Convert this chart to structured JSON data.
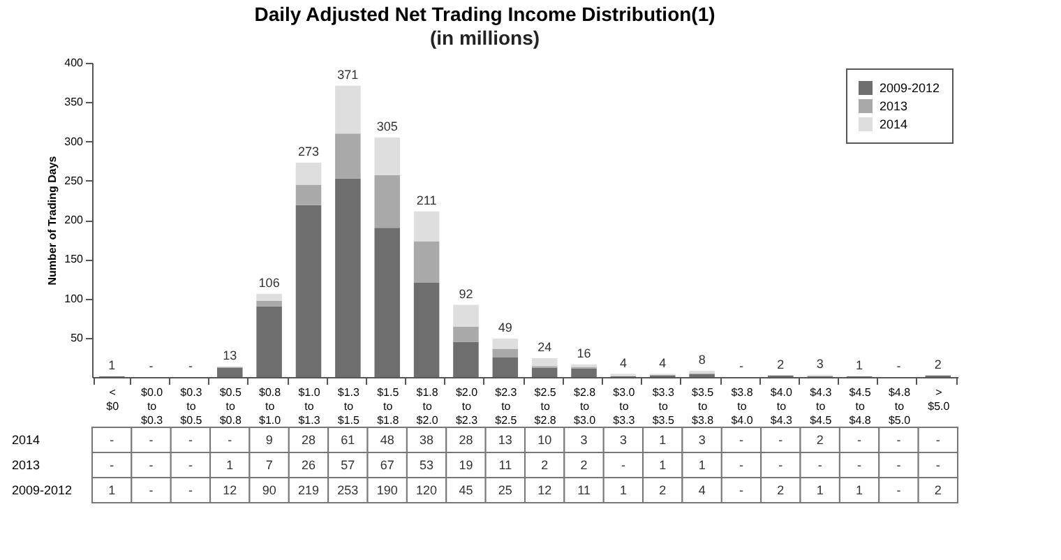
{
  "chart_data": {
    "type": "bar",
    "title": "Daily Adjusted Net Trading Income Distribution(1)",
    "subtitle": "(in millions)",
    "ylabel": "Number of Trading Days",
    "categories": [
      "< $0",
      "$0.0 to $0.3",
      "$0.3 to $0.5",
      "$0.5 to $0.8",
      "$0.8 to $1.0",
      "$1.0 to $1.3",
      "$1.3 to $1.5",
      "$1.5 to $1.8",
      "$1.8 to $2.0",
      "$2.0 to $2.3",
      "$2.3 to $2.5",
      "$2.5 to $2.8",
      "$2.8 to $3.0",
      "$3.0 to $3.3",
      "$3.3 to $3.5",
      "$3.5 to $3.8",
      "$3.8 to $4.0",
      "$4.0 to $4.3",
      "$4.3 to $4.5",
      "$4.5 to $4.8",
      "$4.8 to $5.0",
      "> $5.0"
    ],
    "series": [
      {
        "name": "2009-2012",
        "color": "#6e6e6e",
        "values": [
          1,
          null,
          null,
          12,
          90,
          219,
          253,
          190,
          120,
          45,
          25,
          12,
          11,
          1,
          2,
          4,
          null,
          2,
          1,
          1,
          null,
          2
        ],
        "value_labels": [
          "1",
          "-",
          "-",
          "12",
          "90",
          "219",
          "253",
          "190",
          "120",
          "45",
          "25",
          "12",
          "11",
          "1",
          "2",
          "4",
          "-",
          "2",
          "1",
          "1",
          "-",
          "2"
        ]
      },
      {
        "name": "2013",
        "color": "#a9a9a9",
        "values": [
          null,
          null,
          null,
          1,
          7,
          26,
          57,
          67,
          53,
          19,
          11,
          2,
          2,
          null,
          1,
          1,
          null,
          null,
          null,
          null,
          null,
          null
        ],
        "value_labels": [
          "-",
          "-",
          "-",
          "1",
          "7",
          "26",
          "57",
          "67",
          "53",
          "19",
          "11",
          "2",
          "2",
          "-",
          "1",
          "1",
          "-",
          "-",
          "-",
          "-",
          "-",
          "-"
        ]
      },
      {
        "name": "2014",
        "color": "#dedede",
        "values": [
          null,
          null,
          null,
          null,
          9,
          28,
          61,
          48,
          38,
          28,
          13,
          10,
          3,
          3,
          1,
          3,
          null,
          null,
          2,
          null,
          null,
          null
        ],
        "value_labels": [
          "-",
          "-",
          "-",
          "-",
          "9",
          "28",
          "61",
          "48",
          "38",
          "28",
          "13",
          "10",
          "3",
          "3",
          "1",
          "3",
          "-",
          "-",
          "2",
          "-",
          "-",
          "-"
        ]
      }
    ],
    "totals": [
      "1",
      "-",
      "-",
      "13",
      "106",
      "273",
      "371",
      "305",
      "211",
      "92",
      "49",
      "24",
      "16",
      "4",
      "4",
      "8",
      "-",
      "2",
      "3",
      "1",
      "-",
      "2"
    ],
    "stacked": true,
    "ylim": [
      0,
      400
    ],
    "yticks": [
      50,
      100,
      150,
      200,
      250,
      300,
      350,
      400
    ],
    "grid": false,
    "legend": "top right"
  }
}
